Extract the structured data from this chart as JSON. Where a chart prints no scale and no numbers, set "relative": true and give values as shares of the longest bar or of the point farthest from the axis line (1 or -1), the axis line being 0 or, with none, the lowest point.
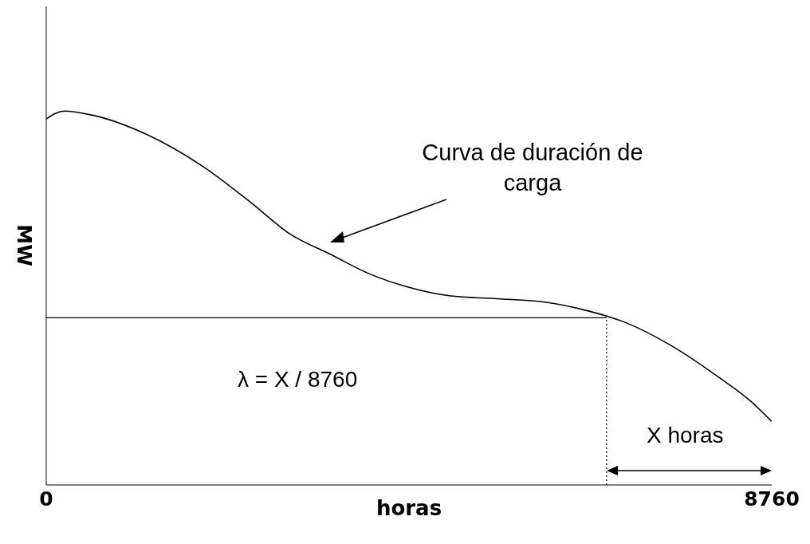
{
  "chart_data": {
    "type": "line",
    "xlabel": "horas",
    "ylabel": "MW",
    "relative": true,
    "xlim": [
      0,
      8760
    ],
    "xticks": [
      0,
      8760
    ],
    "marker": "none",
    "series": [
      {
        "color": "#000000",
        "line_style": "solid",
        "x": [
          0,
          220,
          556,
          1227,
          1898,
          2473,
          2952,
          3431,
          3910,
          4390,
          4869,
          5444,
          6019,
          6498,
          6977,
          7552,
          8127,
          8511,
          8760
        ],
        "values": [
          0.979,
          1.0,
          0.989,
          0.936,
          0.851,
          0.755,
          0.67,
          0.617,
          0.564,
          0.528,
          0.506,
          0.498,
          0.489,
          0.468,
          0.436,
          0.372,
          0.287,
          0.223,
          0.17
        ]
      },
      {
        "color": "#000000",
        "line_style": "solid",
        "x": [
          0,
          6767
        ],
        "values": [
          0.447,
          0.447
        ]
      },
      {
        "color": "#000000",
        "line_style": "dotted",
        "x": [
          6767,
          6767
        ],
        "values": [
          0,
          0.447
        ]
      }
    ],
    "annotations": [
      "Curva de duración de carga",
      "λ = X / 8760",
      "X horas"
    ]
  }
}
